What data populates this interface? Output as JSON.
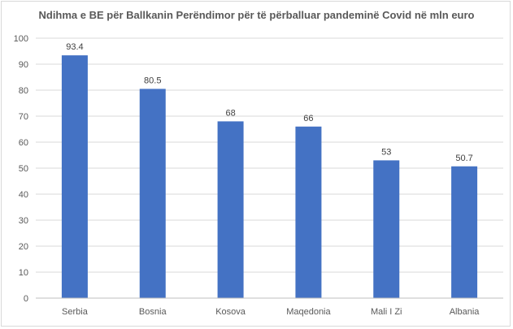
{
  "chart_data": {
    "type": "bar",
    "title": "Ndihma e BE për Ballkanin Perëndimor për të përballuar pandeminë Covid në mln euro",
    "xlabel": "",
    "ylabel": "",
    "categories": [
      "Serbia",
      "Bosnia",
      "Kosova",
      "Maqedonia",
      "Mali I Zi",
      "Albania"
    ],
    "values": [
      93.4,
      80.5,
      68,
      66,
      53,
      50.7
    ],
    "value_labels": [
      "93.4",
      "80.5",
      "68",
      "66",
      "53",
      "50.7"
    ],
    "ylim": [
      0,
      100
    ],
    "yticks": [
      0,
      10,
      20,
      30,
      40,
      50,
      60,
      70,
      80,
      90,
      100
    ],
    "grid": true,
    "legend": "none",
    "bar_color": "#4472c4"
  }
}
